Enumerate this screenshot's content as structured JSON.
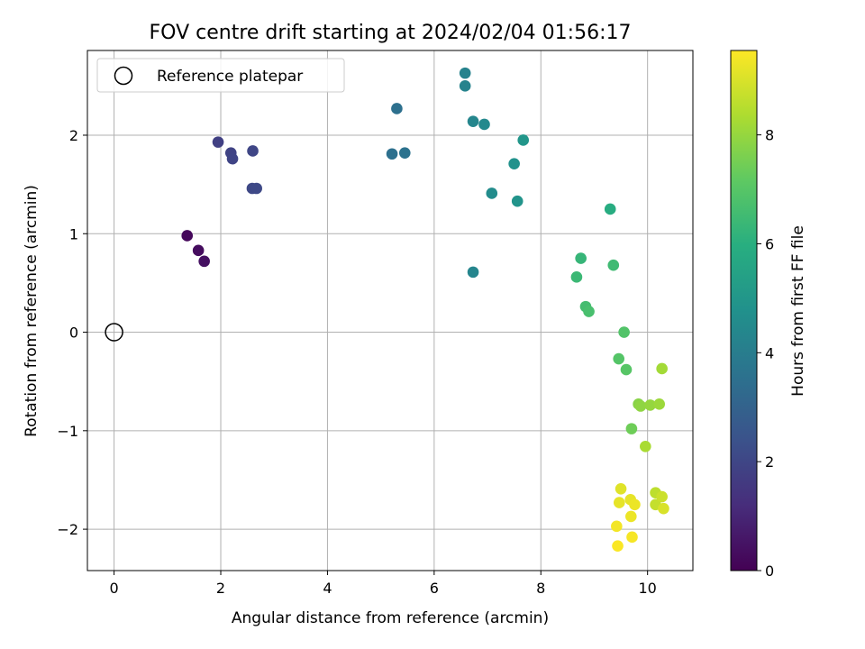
{
  "chart_data": {
    "type": "scatter",
    "title": "FOV centre drift starting at 2024/02/04 01:56:17",
    "xlabel": "Angular distance from reference (arcmin)",
    "ylabel": "Rotation from reference (arcmin)",
    "xlim": [
      -0.5,
      10.85
    ],
    "ylim": [
      -2.42,
      2.86
    ],
    "xticks": [
      0,
      2,
      4,
      6,
      8,
      10
    ],
    "yticks": [
      -2,
      -1,
      0,
      1,
      2
    ],
    "grid": true,
    "legend": {
      "placement": "top-left",
      "entries": [
        "Reference platepar"
      ]
    },
    "reference_point": {
      "name": "Reference platepar",
      "x": 0,
      "y": 0
    },
    "colorbar": {
      "label": "Hours from first FF file",
      "range": [
        0,
        9.55
      ],
      "ticks": [
        0,
        2,
        4,
        6,
        8
      ],
      "colormap": "viridis"
    },
    "points": [
      {
        "x": 1.37,
        "y": 0.98,
        "c": 0.2
      },
      {
        "x": 1.58,
        "y": 0.83,
        "c": 0.3
      },
      {
        "x": 1.69,
        "y": 0.72,
        "c": 0.4
      },
      {
        "x": 1.95,
        "y": 1.93,
        "c": 1.8
      },
      {
        "x": 2.19,
        "y": 1.82,
        "c": 1.9
      },
      {
        "x": 2.22,
        "y": 1.76,
        "c": 1.95
      },
      {
        "x": 2.6,
        "y": 1.84,
        "c": 2.0
      },
      {
        "x": 2.59,
        "y": 1.46,
        "c": 2.05
      },
      {
        "x": 2.67,
        "y": 1.46,
        "c": 2.1
      },
      {
        "x": 5.3,
        "y": 2.27,
        "c": 3.5
      },
      {
        "x": 5.21,
        "y": 1.81,
        "c": 3.5
      },
      {
        "x": 5.45,
        "y": 1.82,
        "c": 3.6
      },
      {
        "x": 6.58,
        "y": 2.63,
        "c": 4.2
      },
      {
        "x": 6.58,
        "y": 2.5,
        "c": 4.25
      },
      {
        "x": 6.73,
        "y": 2.14,
        "c": 4.35
      },
      {
        "x": 6.94,
        "y": 2.11,
        "c": 4.45
      },
      {
        "x": 6.73,
        "y": 0.61,
        "c": 4.3
      },
      {
        "x": 7.08,
        "y": 1.41,
        "c": 4.6
      },
      {
        "x": 7.5,
        "y": 1.71,
        "c": 4.8
      },
      {
        "x": 7.56,
        "y": 1.33,
        "c": 4.9
      },
      {
        "x": 7.67,
        "y": 1.95,
        "c": 5.0
      },
      {
        "x": 9.3,
        "y": 1.25,
        "c": 5.9
      },
      {
        "x": 8.75,
        "y": 0.75,
        "c": 6.3
      },
      {
        "x": 8.67,
        "y": 0.56,
        "c": 6.4
      },
      {
        "x": 9.36,
        "y": 0.68,
        "c": 6.5
      },
      {
        "x": 8.84,
        "y": 0.26,
        "c": 6.6
      },
      {
        "x": 8.9,
        "y": 0.21,
        "c": 6.7
      },
      {
        "x": 9.56,
        "y": 0.0,
        "c": 6.9
      },
      {
        "x": 9.46,
        "y": -0.27,
        "c": 6.95
      },
      {
        "x": 9.6,
        "y": -0.38,
        "c": 7.0
      },
      {
        "x": 9.7,
        "y": -0.98,
        "c": 7.4
      },
      {
        "x": 9.83,
        "y": -0.73,
        "c": 7.8
      },
      {
        "x": 9.87,
        "y": -0.75,
        "c": 7.9
      },
      {
        "x": 10.05,
        "y": -0.74,
        "c": 8.0
      },
      {
        "x": 10.22,
        "y": -0.73,
        "c": 8.1
      },
      {
        "x": 10.27,
        "y": -0.37,
        "c": 8.2
      },
      {
        "x": 9.96,
        "y": -1.16,
        "c": 8.3
      },
      {
        "x": 10.15,
        "y": -1.63,
        "c": 8.6
      },
      {
        "x": 10.15,
        "y": -1.75,
        "c": 8.7
      },
      {
        "x": 10.27,
        "y": -1.67,
        "c": 8.8
      },
      {
        "x": 10.3,
        "y": -1.79,
        "c": 9.0
      },
      {
        "x": 9.5,
        "y": -1.59,
        "c": 9.1
      },
      {
        "x": 9.47,
        "y": -1.73,
        "c": 9.2
      },
      {
        "x": 9.68,
        "y": -1.7,
        "c": 9.2
      },
      {
        "x": 9.76,
        "y": -1.75,
        "c": 9.3
      },
      {
        "x": 9.69,
        "y": -1.87,
        "c": 9.3
      },
      {
        "x": 9.42,
        "y": -1.97,
        "c": 9.4
      },
      {
        "x": 9.71,
        "y": -2.08,
        "c": 9.45
      },
      {
        "x": 9.44,
        "y": -2.17,
        "c": 9.5
      }
    ]
  }
}
